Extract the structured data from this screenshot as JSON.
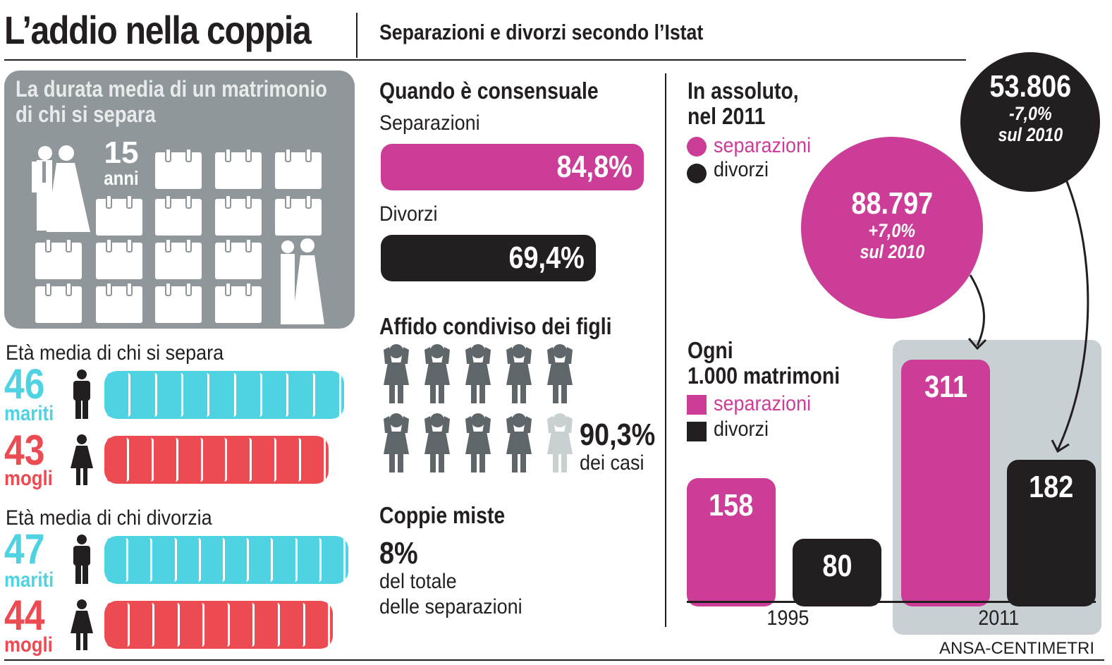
{
  "header": {
    "title": "L’addio nella coppia",
    "subtitle": "Separazioni e divorzi secondo l’Istat"
  },
  "duration": {
    "heading_line1": "La durata media di un matrimonio",
    "heading_line2": "di chi si separa",
    "years_value": "15",
    "years_unit": "anni"
  },
  "age_separate": {
    "heading": "Età media di chi si separa",
    "husbands_value": "46",
    "husbands_label": "mariti",
    "wives_value": "43",
    "wives_label": "mogli"
  },
  "age_divorce": {
    "heading": "Età media di chi divorzia",
    "husbands_value": "47",
    "husbands_label": "mariti",
    "wives_value": "44",
    "wives_label": "mogli"
  },
  "consensual": {
    "heading": "Quando è consensuale",
    "separations_label": "Separazioni",
    "separations_value": "84,8%",
    "divorces_label": "Divorzi",
    "divorces_value": "69,4%"
  },
  "custody": {
    "heading": "Affido condiviso dei figli",
    "value": "90,3%",
    "caption": "dei casi"
  },
  "mixed": {
    "heading": "Coppie miste",
    "value": "8%",
    "caption_line1": "del totale",
    "caption_line2": "delle separazioni"
  },
  "absolute": {
    "heading_line1": "In assoluto,",
    "heading_line2": "nel 2011",
    "legend_sep": "separazioni",
    "legend_div": "divorzi",
    "separations_value": "88.797",
    "separations_delta": "+7,0%",
    "separations_ref": "sul 2010",
    "divorces_value": "53.806",
    "divorces_delta": "-7,0%",
    "divorces_ref": "sul 2010"
  },
  "per_thousand": {
    "heading_line1": "Ogni",
    "heading_line2": "1.000 matrimoni",
    "legend_sep": "separazioni",
    "legend_div": "divorzi"
  },
  "source": "ANSA-CENTIMETRI",
  "colors": {
    "magenta": "#cc3d97",
    "dark": "#231f20",
    "cyan": "#4fd3e3",
    "red": "#ec4b52",
    "grey_panel": "#8f979a",
    "highlight": "#c8d0d4"
  },
  "chart_data": [
    {
      "type": "bar",
      "title": "Quando è consensuale",
      "categories": [
        "Separazioni",
        "Divorzi"
      ],
      "values": [
        84.8,
        69.4
      ],
      "value_labels": [
        "84,8%",
        "69,4%"
      ],
      "unit": "%"
    },
    {
      "type": "bar",
      "title": "Ogni 1.000 matrimoni",
      "categories": [
        "1995",
        "2011"
      ],
      "series": [
        {
          "name": "separazioni",
          "values": [
            158,
            311
          ]
        },
        {
          "name": "divorzi",
          "values": [
            80,
            182
          ]
        }
      ],
      "highlight_category": "2011"
    }
  ]
}
